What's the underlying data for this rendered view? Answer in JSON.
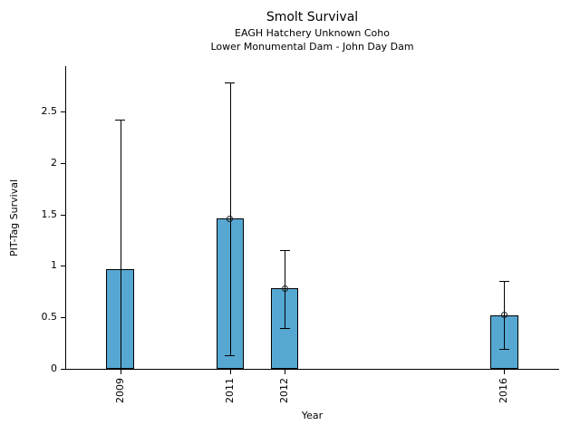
{
  "chart_data": {
    "type": "bar",
    "title": "Smolt Survival",
    "subtitle1": "EAGH Hatchery Unknown Coho",
    "subtitle2": "Lower Monumental Dam - John Day Dam",
    "xlabel": "Year",
    "ylabel": "PIT-Tag Survival",
    "xlim": [
      2008,
      2017
    ],
    "ylim": [
      0,
      2.94
    ],
    "yticks": [
      0,
      0.5,
      1,
      1.5,
      2,
      2.5
    ],
    "ytick_labels": [
      "0",
      "0.5",
      "1",
      "1.5",
      "2",
      "2.5"
    ],
    "grid": false,
    "legend": "none",
    "bar_width_years": 0.5,
    "bar_color": "#56A8D2",
    "bar_edge_color": "#000000",
    "error_color": "#000000",
    "points": [
      {
        "year": 2009,
        "label": "2009",
        "value": 0.97,
        "ci_low": 0.0,
        "ci_high": 2.42,
        "marker": false
      },
      {
        "year": 2011,
        "label": "2011",
        "value": 1.46,
        "ci_low": 0.13,
        "ci_high": 2.78,
        "marker": true
      },
      {
        "year": 2012,
        "label": "2012",
        "value": 0.78,
        "ci_low": 0.4,
        "ci_high": 1.15,
        "marker": true
      },
      {
        "year": 2016,
        "label": "2016",
        "value": 0.52,
        "ci_low": 0.19,
        "ci_high": 0.85,
        "marker": true
      }
    ]
  }
}
